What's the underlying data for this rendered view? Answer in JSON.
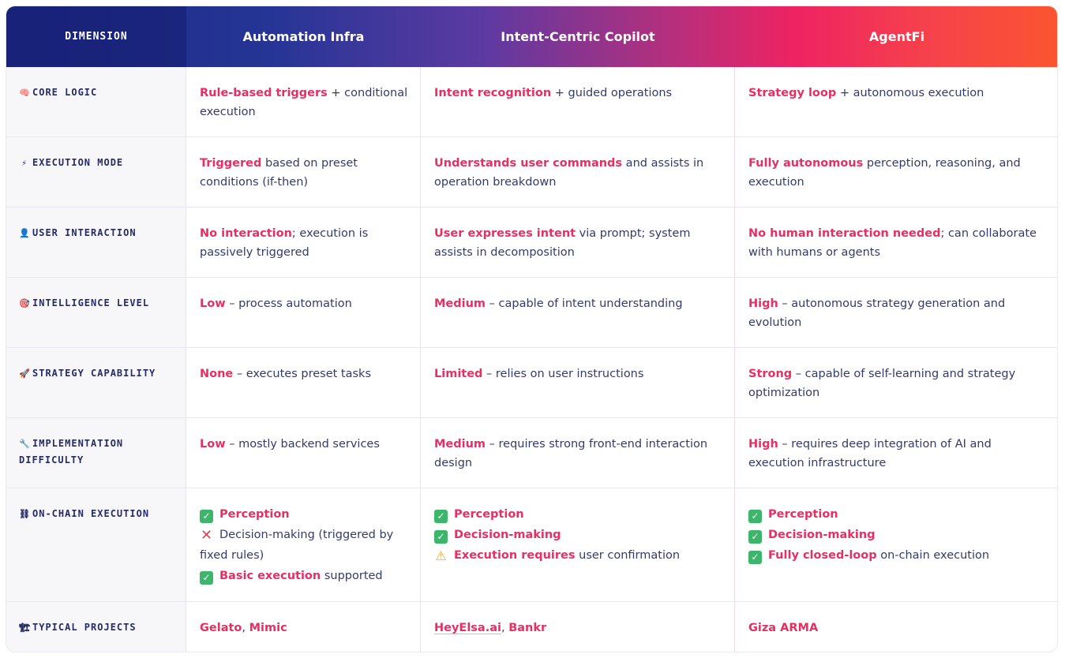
{
  "header": {
    "dimension": "DIMENSION",
    "col1": "Automation Infra",
    "col2": "Intent-Centric Copilot",
    "col3": "AgentFi"
  },
  "rows": [
    {
      "icon": "brain-icon",
      "glyph": "🧠",
      "dimension": "CORE LOGIC",
      "c1": {
        "hl": "Rule-based triggers",
        "rest": " + conditional execution"
      },
      "c2": {
        "hl": "Intent recognition",
        "rest": " + guided operations"
      },
      "c3": {
        "hl": "Strategy loop",
        "rest": " + autonomous execution"
      }
    },
    {
      "icon": "lightning-icon",
      "glyph": "⚡",
      "dimension": "EXECUTION MODE",
      "c1": {
        "hl": "Triggered",
        "rest": " based on preset conditions (if-then)"
      },
      "c2": {
        "hl": "Understands user commands",
        "rest": " and assists in operation breakdown"
      },
      "c3": {
        "hl": "Fully autonomous",
        "rest": " perception, reasoning, and execution"
      }
    },
    {
      "icon": "user-icon",
      "glyph": "👤",
      "dimension": "USER INTERACTION",
      "c1": {
        "hl": "No interaction",
        "rest": "; execution is passively triggered"
      },
      "c2": {
        "hl": "User expresses intent",
        "rest": " via prompt; system assists in decomposition"
      },
      "c3": {
        "hl": "No human interaction needed",
        "rest": "; can collaborate with humans or agents"
      }
    },
    {
      "icon": "target-icon",
      "glyph": "🎯",
      "dimension": "INTELLIGENCE LEVEL",
      "c1": {
        "hl": "Low",
        "rest": " – process automation"
      },
      "c2": {
        "hl": "Medium",
        "rest": " – capable of intent understanding"
      },
      "c3": {
        "hl": "High",
        "rest": " – autonomous strategy generation and evolution"
      }
    },
    {
      "icon": "rocket-icon",
      "glyph": "🚀",
      "dimension": "STRATEGY CAPABILITY",
      "c1": {
        "hl": "None",
        "rest": " – executes preset tasks"
      },
      "c2": {
        "hl": "Limited",
        "rest": " – relies on user instructions"
      },
      "c3": {
        "hl": "Strong",
        "rest": " – capable of self-learning and strategy optimization"
      }
    },
    {
      "icon": "wrench-icon",
      "glyph": "🔧",
      "dimension": "IMPLEMENTATION DIFFICULTY",
      "c1": {
        "hl": "Low",
        "rest": " – mostly backend services"
      },
      "c2": {
        "hl": "Medium",
        "rest": " – requires strong front-end interaction design"
      },
      "c3": {
        "hl": "High",
        "rest": " – requires deep integration of AI and execution infrastructure"
      }
    }
  ],
  "onchain": {
    "icon": "chain-icon",
    "glyph": "⛓",
    "dimension": "ON-CHAIN EXECUTION",
    "c1": [
      {
        "mark": "check",
        "hl": "Perception",
        "rest": ""
      },
      {
        "mark": "cross",
        "hl": "",
        "rest": "Decision-making (triggered by fixed rules)"
      },
      {
        "mark": "check",
        "hl": "Basic execution",
        "rest": " supported"
      }
    ],
    "c2": [
      {
        "mark": "check",
        "hl": "Perception",
        "rest": ""
      },
      {
        "mark": "check",
        "hl": "Decision-making",
        "rest": ""
      },
      {
        "mark": "warn",
        "hl": "Execution requires",
        "rest": " user confirmation"
      }
    ],
    "c3": [
      {
        "mark": "check",
        "hl": "Perception",
        "rest": ""
      },
      {
        "mark": "check",
        "hl": "Decision-making",
        "rest": ""
      },
      {
        "mark": "check",
        "hl": "Fully closed-loop",
        "rest": " on-chain execution"
      }
    ]
  },
  "projects": {
    "icon": "building-icon",
    "glyph": "🏗",
    "dimension": "TYPICAL PROJECTS",
    "c1": {
      "a": "Gelato",
      "sep": ", ",
      "b": "Mimic"
    },
    "c2": {
      "a": "HeyElsa.ai",
      "sep": ", ",
      "b": "Bankr"
    },
    "c3": {
      "a": "Giza ARMA"
    }
  },
  "colors": {
    "accent": "#e62f62",
    "text": "#343a6b",
    "dim_bg": "#f7f7fa"
  }
}
